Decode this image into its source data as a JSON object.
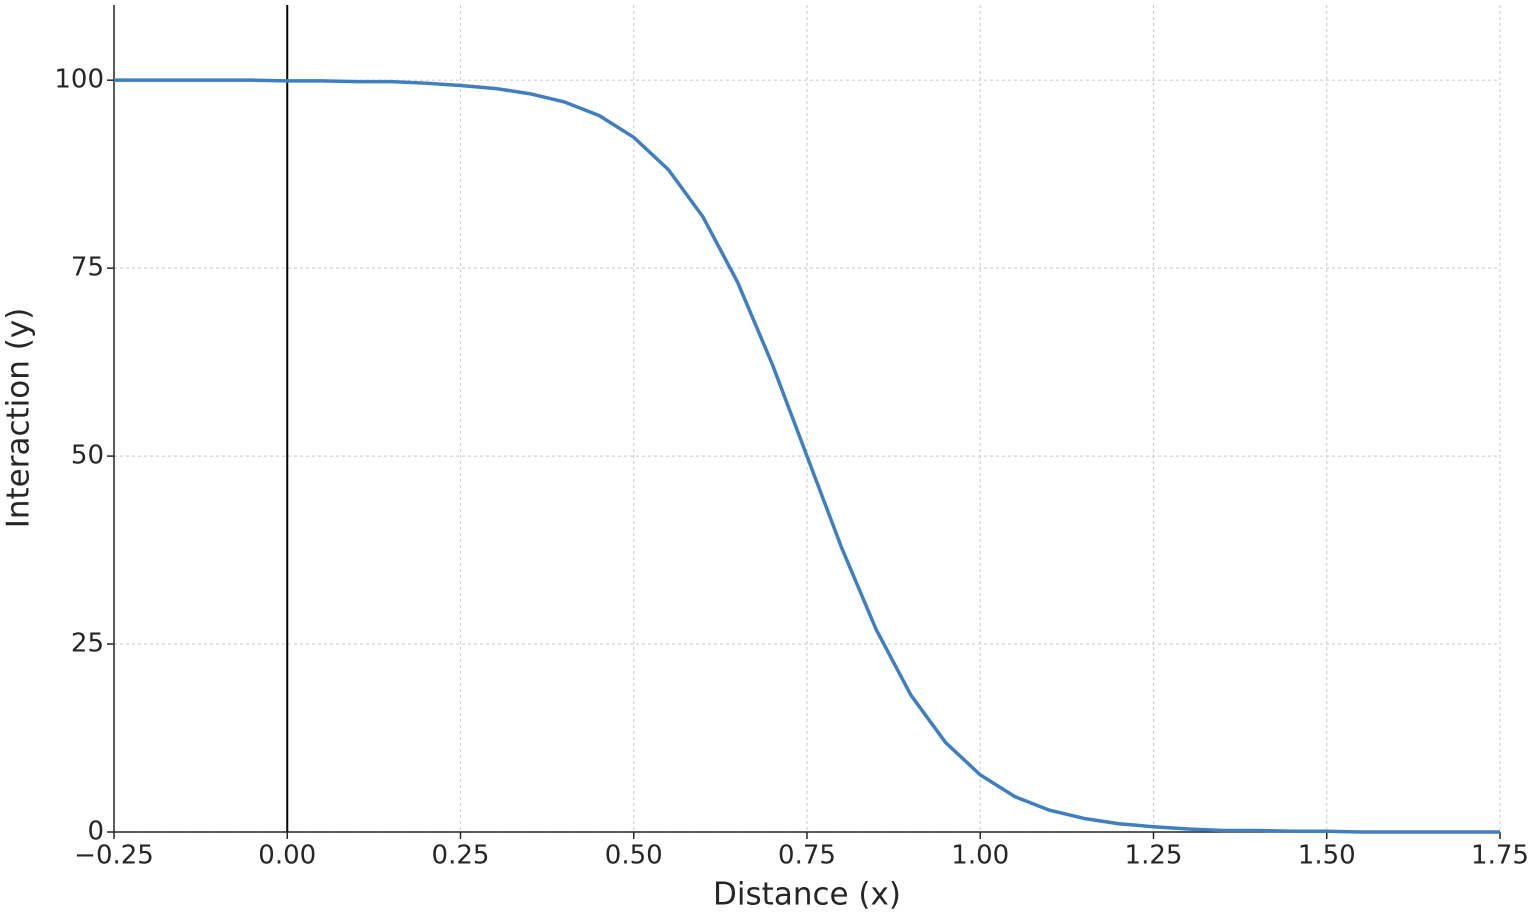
{
  "chart_data": {
    "type": "line",
    "x_label": "Distance (x)",
    "y_label": "Interaction (y)",
    "x": [
      -0.25,
      -0.2,
      -0.15,
      -0.1,
      -0.05,
      0.0,
      0.05,
      0.1,
      0.15,
      0.2,
      0.25,
      0.3,
      0.35,
      0.4,
      0.45,
      0.5,
      0.55,
      0.6,
      0.65,
      0.7,
      0.75,
      0.8,
      0.85,
      0.9,
      0.95,
      1.0,
      1.05,
      1.1,
      1.15,
      1.2,
      1.25,
      1.3,
      1.35,
      1.4,
      1.45,
      1.5,
      1.55,
      1.6,
      1.65,
      1.7,
      1.75
    ],
    "series": [
      {
        "color": "#3f7fbf",
        "values": [
          100.0,
          100.0,
          100.0,
          100.0,
          100.0,
          99.9,
          99.9,
          99.8,
          99.8,
          99.6,
          99.3,
          98.9,
          98.2,
          97.1,
          95.3,
          92.4,
          88.1,
          81.8,
          73.1,
          62.2,
          50.0,
          37.8,
          26.9,
          18.2,
          11.9,
          7.6,
          4.7,
          2.9,
          1.8,
          1.1,
          0.7,
          0.4,
          0.2,
          0.2,
          0.1,
          0.1,
          0.0,
          0.0,
          0.0,
          0.0,
          0.0
        ]
      }
    ],
    "xlim": [
      -0.25,
      1.75
    ],
    "ylim": [
      0,
      110
    ],
    "xticks": [
      {
        "value": -0.25,
        "label": "−0.25"
      },
      {
        "value": 0,
        "label": "0.00"
      },
      {
        "value": 0.25,
        "label": "0.25"
      },
      {
        "value": 0.5,
        "label": "0.50"
      },
      {
        "value": 0.75,
        "label": "0.75"
      },
      {
        "value": 1,
        "label": "1.00"
      },
      {
        "value": 1.25,
        "label": "1.25"
      },
      {
        "value": 1.5,
        "label": "1.50"
      },
      {
        "value": 1.75,
        "label": "1.75"
      }
    ],
    "yticks": [
      0,
      25,
      50,
      75,
      100
    ],
    "vline": 0,
    "vline_color": "#000000",
    "grid": true
  }
}
